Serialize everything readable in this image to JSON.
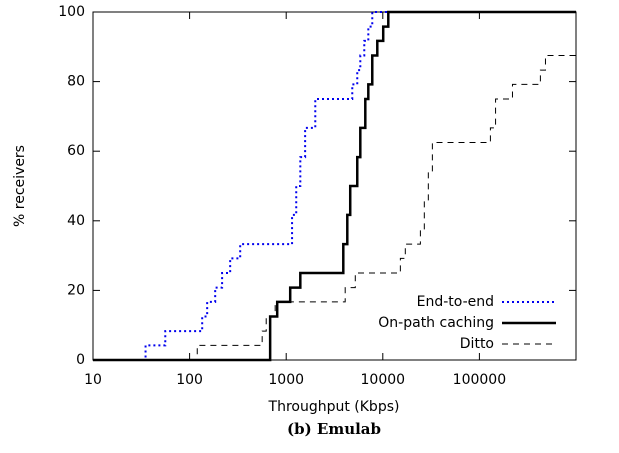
{
  "chart_data": {
    "type": "step",
    "caption": "(b) Emulab",
    "x_label": "Throughput (Kbps)",
    "y_label": "% receivers",
    "xlim": [
      10,
      1000000
    ],
    "xscale": "log",
    "xticks": [
      10,
      100,
      1000,
      10000,
      100000
    ],
    "ylim": [
      0,
      100
    ],
    "yticks": [
      0,
      20,
      40,
      60,
      80,
      100
    ],
    "legend": "lower right",
    "series": [
      {
        "name": "End-to-end",
        "color": "#0000ee",
        "dash": "dotted",
        "x": [
          10,
          35,
          56,
          135,
          152,
          184,
          217,
          263,
          334,
          1150,
          1270,
          1400,
          1570,
          2000,
          4830,
          5440,
          5850,
          6430,
          7080,
          7780,
          1000000
        ],
        "values": [
          0,
          4.2,
          8.3,
          12.5,
          16.7,
          20.8,
          25,
          29.2,
          33.3,
          41.7,
          50,
          58.3,
          66.7,
          75,
          79.2,
          83.3,
          87.5,
          91.7,
          95.8,
          100,
          100
        ]
      },
      {
        "name": "On-path caching",
        "color": "#000000",
        "dash": "solid",
        "x": [
          10,
          682,
          807,
          1100,
          1400,
          3900,
          4290,
          4600,
          5440,
          5850,
          6590,
          7080,
          7780,
          8770,
          10100,
          11400,
          1000000
        ],
        "values": [
          0,
          12.5,
          16.7,
          20.8,
          25,
          33.3,
          41.7,
          50,
          58.3,
          66.7,
          75,
          79.2,
          87.5,
          91.7,
          95.8,
          100,
          100
        ]
      },
      {
        "name": "Ditto",
        "color": "#000000",
        "dash": "dashed",
        "x": [
          10,
          120,
          564,
          621,
          769,
          4080,
          5190,
          15200,
          17100,
          24500,
          26900,
          29600,
          32600,
          130000,
          147000,
          220000,
          428000,
          483000,
          1000000
        ],
        "values": [
          0,
          4.2,
          8.3,
          12.5,
          16.7,
          20.8,
          25,
          29.2,
          33.3,
          37.5,
          45.8,
          54.2,
          62.5,
          66.7,
          75,
          79.2,
          83.3,
          87.5,
          87.5
        ]
      }
    ]
  }
}
